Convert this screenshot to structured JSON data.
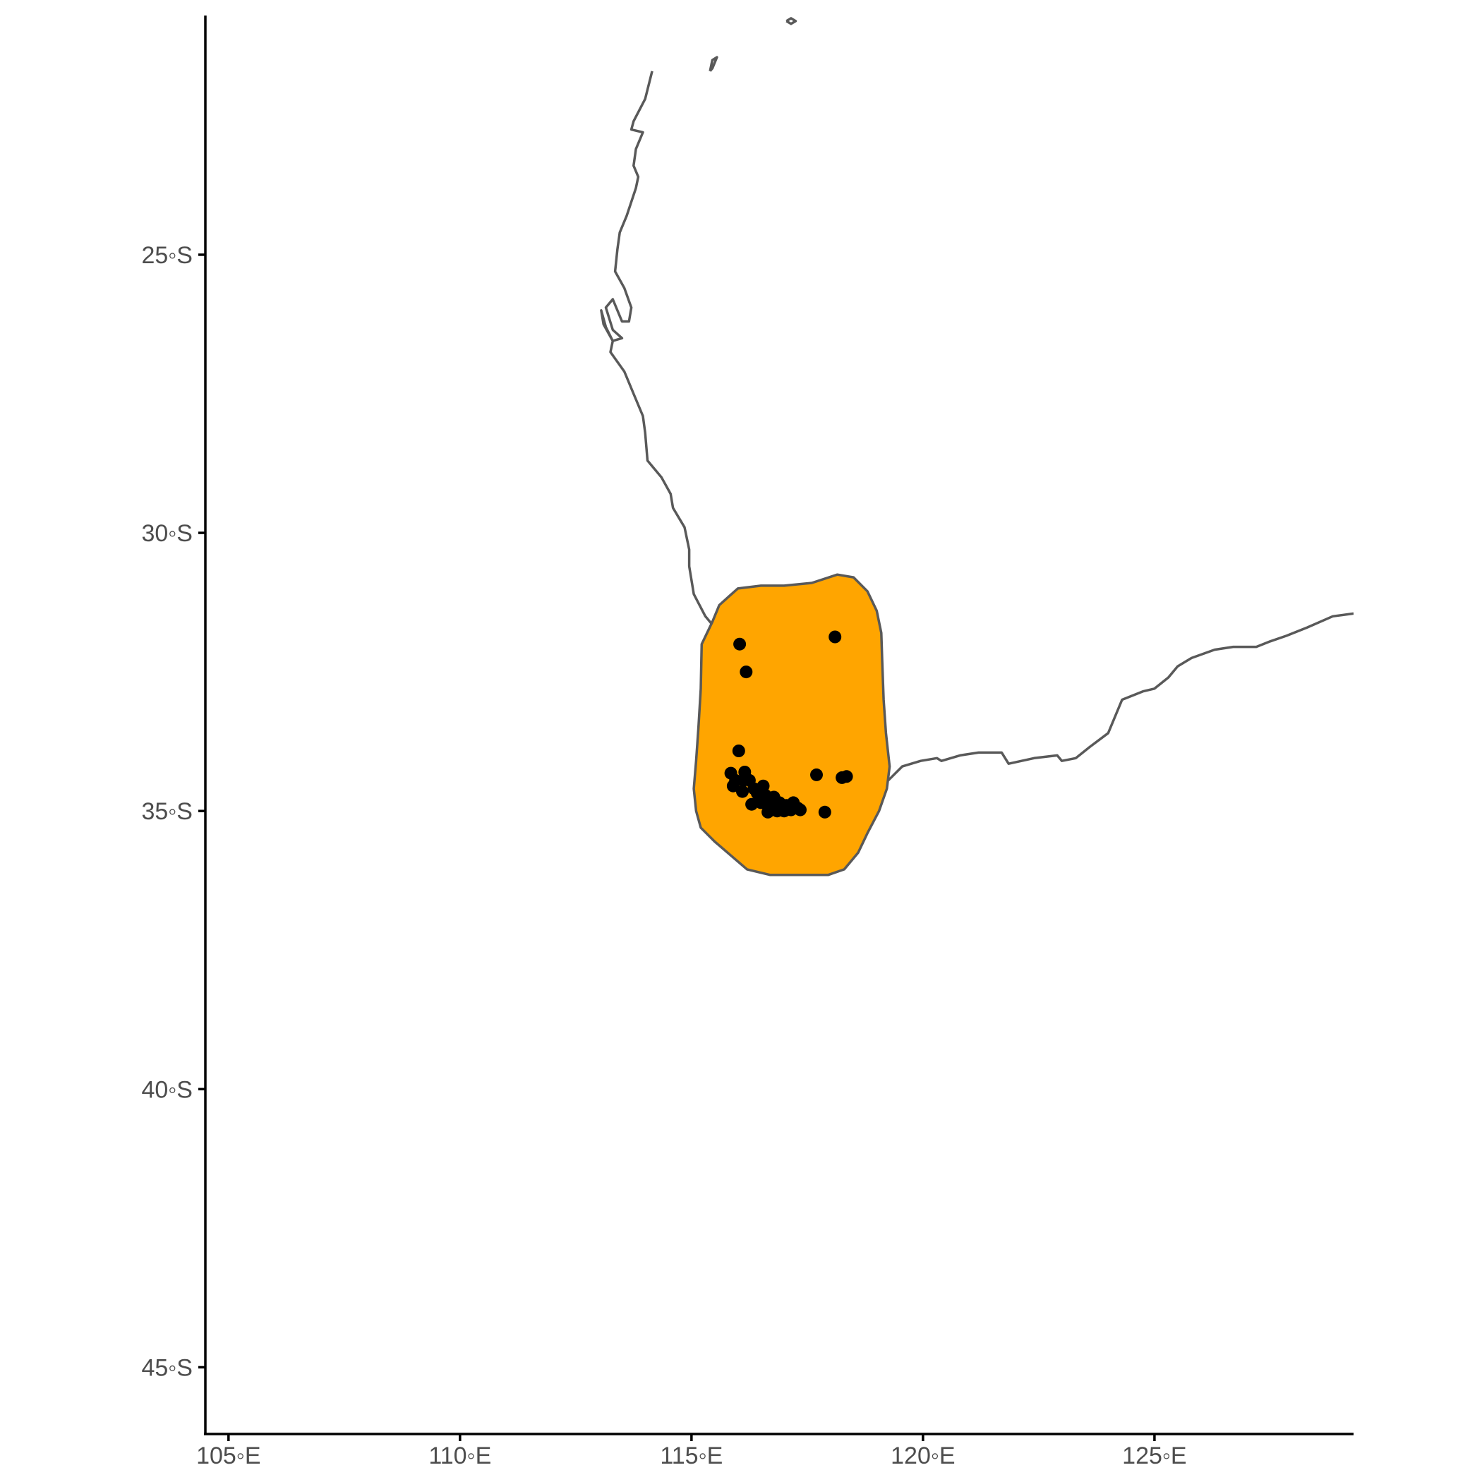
{
  "chart_data": {
    "type": "scatter",
    "map": true,
    "projection": "geographic",
    "xlim": [
      104.5,
      129.3
    ],
    "ylim": [
      -46.2,
      -20.7
    ],
    "x_ticks": [
      105,
      110,
      115,
      120,
      125
    ],
    "x_tick_labels": [
      "105◦E",
      "110◦E",
      "115◦E",
      "120◦E",
      "125◦E"
    ],
    "y_ticks": [
      -25,
      -30,
      -35,
      -40,
      -45
    ],
    "y_tick_labels": [
      "25◦S",
      "30◦S",
      "35◦S",
      "40◦S",
      "45◦S"
    ],
    "grid": false,
    "colors": {
      "range_fill": "#FFA500",
      "outline": "#595959",
      "points": "#000000",
      "axis": "#000000",
      "tick_text": "#4d4d4d"
    },
    "coastline": [
      [
        114.15,
        -21.7
      ],
      [
        114.0,
        -22.2
      ],
      [
        113.75,
        -22.6
      ],
      [
        113.7,
        -22.75
      ],
      [
        113.95,
        -22.8
      ],
      [
        113.8,
        -23.1
      ],
      [
        113.75,
        -23.4
      ],
      [
        113.85,
        -23.6
      ],
      [
        113.8,
        -23.8
      ],
      [
        113.6,
        -24.3
      ],
      [
        113.45,
        -24.6
      ],
      [
        113.4,
        -24.9
      ],
      [
        113.35,
        -25.3
      ],
      [
        113.55,
        -25.6
      ],
      [
        113.7,
        -25.95
      ],
      [
        113.65,
        -26.2
      ],
      [
        113.5,
        -26.2
      ],
      [
        113.3,
        -25.8
      ],
      [
        113.15,
        -25.95
      ],
      [
        113.3,
        -26.35
      ],
      [
        113.5,
        -26.5
      ],
      [
        113.3,
        -26.55
      ],
      [
        113.15,
        -26.3
      ],
      [
        113.05,
        -26.0
      ],
      [
        113.1,
        -26.25
      ],
      [
        113.3,
        -26.55
      ],
      [
        113.25,
        -26.75
      ],
      [
        113.55,
        -27.1
      ],
      [
        113.75,
        -27.5
      ],
      [
        113.95,
        -27.9
      ],
      [
        114.0,
        -28.2
      ],
      [
        114.05,
        -28.7
      ],
      [
        114.35,
        -29.0
      ],
      [
        114.55,
        -29.3
      ],
      [
        114.6,
        -29.55
      ],
      [
        114.85,
        -29.9
      ],
      [
        114.95,
        -30.3
      ],
      [
        114.95,
        -30.6
      ],
      [
        115.05,
        -31.1
      ],
      [
        115.3,
        -31.5
      ],
      [
        115.45,
        -31.65
      ]
    ],
    "south_coast": [
      [
        119.25,
        -34.45
      ],
      [
        119.55,
        -34.2
      ],
      [
        119.95,
        -34.1
      ],
      [
        120.3,
        -34.05
      ],
      [
        120.4,
        -34.1
      ],
      [
        120.8,
        -34.0
      ],
      [
        121.2,
        -33.95
      ],
      [
        121.45,
        -33.95
      ],
      [
        121.7,
        -33.95
      ],
      [
        121.85,
        -34.15
      ],
      [
        122.4,
        -34.05
      ],
      [
        122.9,
        -34.0
      ],
      [
        123.0,
        -34.1
      ],
      [
        123.3,
        -34.05
      ],
      [
        123.6,
        -33.85
      ],
      [
        124.0,
        -33.6
      ],
      [
        124.3,
        -33.0
      ],
      [
        124.75,
        -32.85
      ],
      [
        125.0,
        -32.8
      ],
      [
        125.3,
        -32.6
      ],
      [
        125.5,
        -32.4
      ],
      [
        125.8,
        -32.25
      ],
      [
        126.3,
        -32.1
      ],
      [
        126.7,
        -32.05
      ],
      [
        127.2,
        -32.05
      ],
      [
        127.5,
        -31.95
      ],
      [
        127.85,
        -31.85
      ],
      [
        128.3,
        -31.7
      ],
      [
        128.85,
        -31.5
      ],
      [
        129.3,
        -31.45
      ]
    ],
    "islands": [
      [
        [
          115.4,
          -21.7
        ],
        [
          115.45,
          -21.5
        ],
        [
          115.55,
          -21.45
        ],
        [
          115.45,
          -21.65
        ],
        [
          115.4,
          -21.7
        ]
      ],
      [
        [
          117.05,
          -20.8
        ],
        [
          117.15,
          -20.75
        ],
        [
          117.25,
          -20.8
        ],
        [
          117.15,
          -20.85
        ],
        [
          117.05,
          -20.8
        ]
      ]
    ],
    "range_polygon": [
      [
        115.45,
        -31.6
      ],
      [
        115.6,
        -31.3
      ],
      [
        115.8,
        -31.15
      ],
      [
        116.0,
        -31.0
      ],
      [
        116.5,
        -30.95
      ],
      [
        117.0,
        -30.95
      ],
      [
        117.6,
        -30.9
      ],
      [
        118.15,
        -30.75
      ],
      [
        118.5,
        -30.8
      ],
      [
        118.8,
        -31.05
      ],
      [
        119.0,
        -31.4
      ],
      [
        119.1,
        -31.8
      ],
      [
        119.12,
        -32.3
      ],
      [
        119.15,
        -33.0
      ],
      [
        119.2,
        -33.6
      ],
      [
        119.28,
        -34.2
      ],
      [
        119.22,
        -34.6
      ],
      [
        119.05,
        -35.0
      ],
      [
        118.8,
        -35.4
      ],
      [
        118.6,
        -35.75
      ],
      [
        118.3,
        -36.05
      ],
      [
        117.95,
        -36.15
      ],
      [
        117.4,
        -36.15
      ],
      [
        116.7,
        -36.15
      ],
      [
        116.2,
        -36.05
      ],
      [
        115.85,
        -35.8
      ],
      [
        115.5,
        -35.55
      ],
      [
        115.2,
        -35.3
      ],
      [
        115.1,
        -35.0
      ],
      [
        115.05,
        -34.6
      ],
      [
        115.1,
        -34.1
      ],
      [
        115.15,
        -33.5
      ],
      [
        115.2,
        -32.8
      ],
      [
        115.22,
        -32.0
      ],
      [
        115.45,
        -31.6
      ]
    ],
    "points": [
      [
        116.04,
        -32.0
      ],
      [
        116.18,
        -32.5
      ],
      [
        118.1,
        -31.87
      ],
      [
        116.02,
        -33.92
      ],
      [
        115.85,
        -34.32
      ],
      [
        115.95,
        -34.45
      ],
      [
        116.15,
        -34.3
      ],
      [
        115.9,
        -34.55
      ],
      [
        116.1,
        -34.65
      ],
      [
        116.25,
        -34.45
      ],
      [
        116.35,
        -34.6
      ],
      [
        116.55,
        -34.55
      ],
      [
        116.42,
        -34.68
      ],
      [
        116.6,
        -34.72
      ],
      [
        116.78,
        -34.75
      ],
      [
        116.5,
        -34.85
      ],
      [
        116.7,
        -34.9
      ],
      [
        116.9,
        -34.85
      ],
      [
        117.05,
        -34.9
      ],
      [
        117.2,
        -34.85
      ],
      [
        117.3,
        -34.95
      ],
      [
        116.65,
        -35.02
      ],
      [
        116.85,
        -35.0
      ],
      [
        117.0,
        -35.0
      ],
      [
        117.15,
        -34.98
      ],
      [
        117.35,
        -34.98
      ],
      [
        117.7,
        -34.35
      ],
      [
        118.25,
        -34.4
      ],
      [
        118.35,
        -34.38
      ],
      [
        117.88,
        -35.02
      ],
      [
        116.3,
        -34.88
      ],
      [
        116.12,
        -34.45
      ]
    ]
  }
}
